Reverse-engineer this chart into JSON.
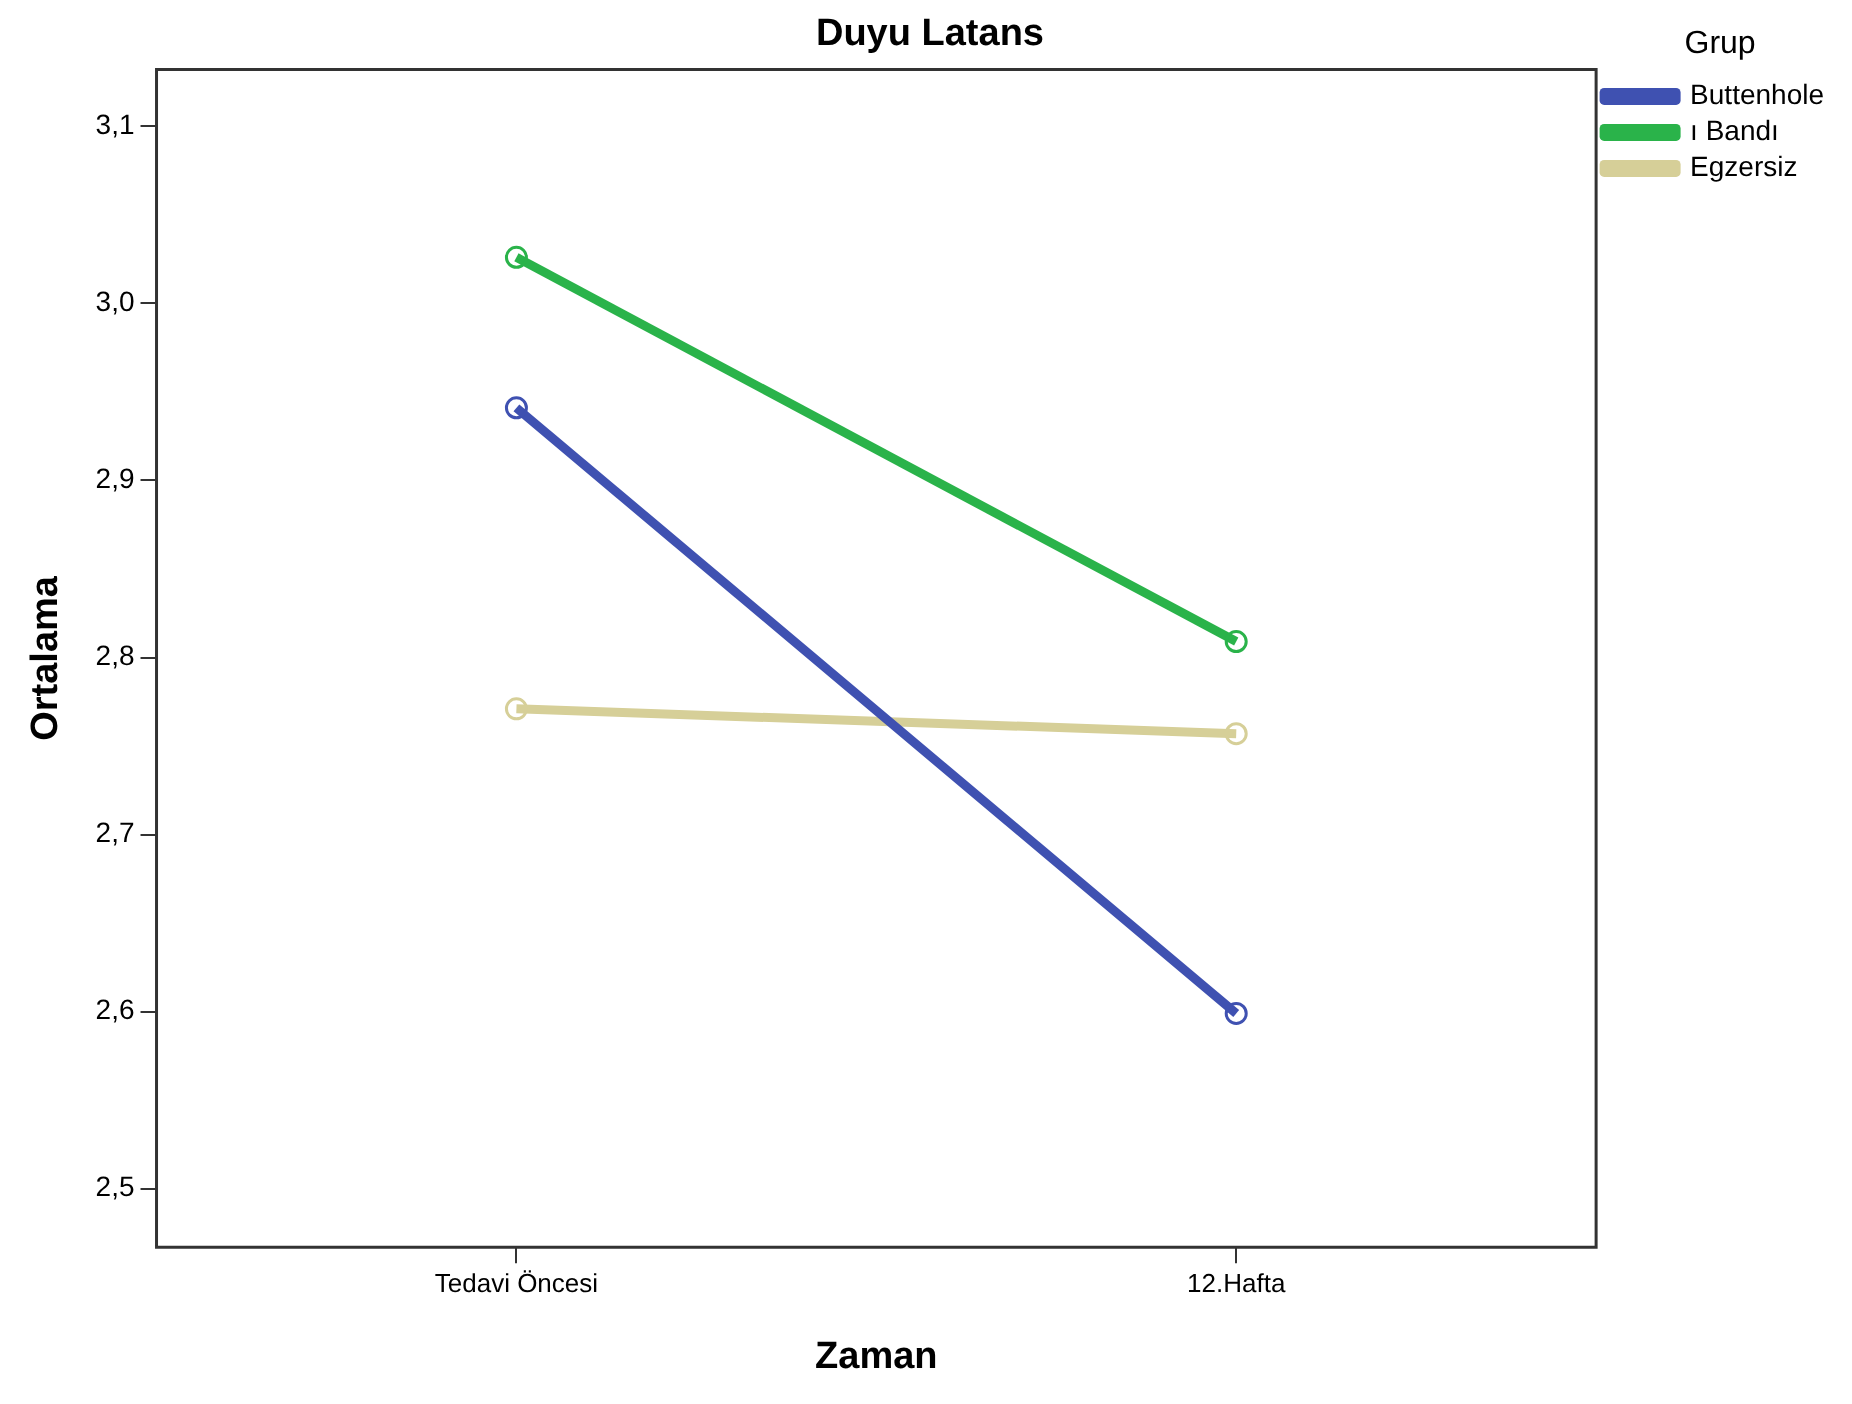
{
  "chart_data": {
    "type": "line",
    "title": "Duyu Latans",
    "xlabel": "Zaman",
    "ylabel": "Ortalama",
    "legend_title": "Grup",
    "legend": "top right",
    "grid": false,
    "marker": "circle",
    "line_style": "solid",
    "categories": [
      "Tedavi Öncesi",
      "12.Hafta"
    ],
    "series": [
      {
        "name": "Buttenhole",
        "color": "#3f51b1",
        "values": [
          2.941,
          2.599
        ]
      },
      {
        "name": "ı Bandı",
        "color": "#2ab34a",
        "values": [
          3.026,
          2.809
        ]
      },
      {
        "name": "Egzersiz",
        "color": "#d6cf98",
        "values": [
          2.771,
          2.757
        ]
      }
    ],
    "ylim": [
      2.467,
      3.132
    ],
    "yticks": [
      {
        "value": 2.5,
        "label": "2,5"
      },
      {
        "value": 2.6,
        "label": "2,6"
      },
      {
        "value": 2.7,
        "label": "2,7"
      },
      {
        "value": 2.8,
        "label": "2,8"
      },
      {
        "value": 2.9,
        "label": "2,9"
      },
      {
        "value": 3.0,
        "label": "3,0"
      },
      {
        "value": 3.1,
        "label": "3,1"
      }
    ]
  }
}
